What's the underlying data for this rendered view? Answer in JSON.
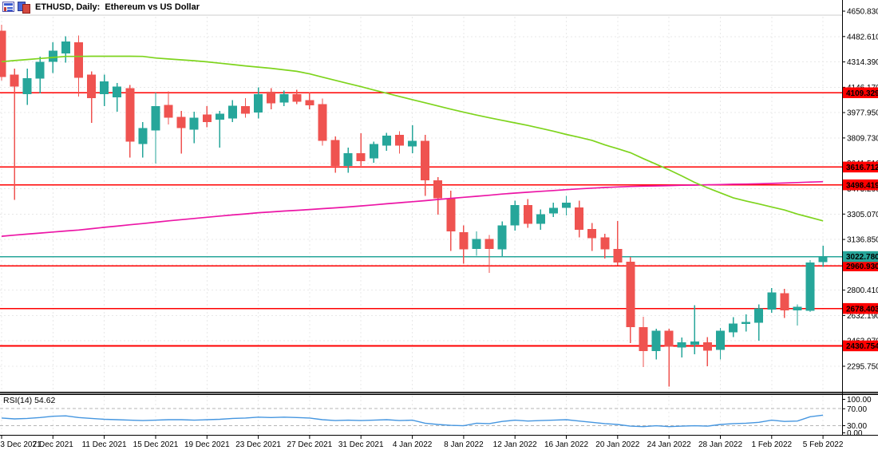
{
  "window": {
    "title": "ETHUSD, Daily:  Ethereum vs US Dollar",
    "icons": [
      "market-watch-icon",
      "chart-window-icon"
    ]
  },
  "colors": {
    "bull": "#26a69a",
    "bear": "#ef5350",
    "level_line": "#ff0000",
    "current_price": "#26a69a",
    "ma_fast": "#7ed41d",
    "ma_slow": "#ec16a6",
    "rsi_line": "#4596e0",
    "grid": "#e8e8e8",
    "rsi_grid": "#b5b5b5",
    "frame": "#000000",
    "top_border": "#cccccc",
    "badge_text": "#ffffff"
  },
  "price_axis": {
    "tick_labels": [
      "4650.830",
      "4482.610",
      "4314.390",
      "4146.170",
      "3977.950",
      "3809.730",
      "3641.510",
      "3473.290",
      "3305.070",
      "3136.850",
      "2968.630",
      "2800.410",
      "2632.190",
      "2463.970",
      "2295.750"
    ]
  },
  "rsi_axis": {
    "tick_labels": [
      "100.00",
      "70.00",
      "30.00",
      "0.00"
    ]
  },
  "time_axis": {
    "tick_labels": [
      "3 Dec 2021",
      "7 Dec 2021",
      "11 Dec 2021",
      "15 Dec 2021",
      "19 Dec 2021",
      "23 Dec 2021",
      "27 Dec 2021",
      "31 Dec 2021",
      "4 Jan 2022",
      "8 Jan 2022",
      "12 Jan 2022",
      "16 Jan 2022",
      "20 Jan 2022",
      "24 Jan 2022",
      "28 Jan 2022",
      "1 Feb 2022",
      "5 Feb 2022"
    ]
  },
  "levels": [
    {
      "label": "4109.329"
    },
    {
      "label": "3616.712"
    },
    {
      "label": "3498.419"
    },
    {
      "label": "2960.930"
    },
    {
      "label": "2678.403"
    },
    {
      "label": "2430.754"
    }
  ],
  "current_price": {
    "label": "3022.780",
    "value": 3022.78
  },
  "rsi_panel": {
    "label": "RSI(14) 54.62",
    "period": 14,
    "value": 54.62
  },
  "chart_data": {
    "type": "candlestick",
    "symbol": "ETHUSD",
    "timeframe": "Daily",
    "description": "Ethereum vs US Dollar",
    "ylim": [
      2295.75,
      4650.83
    ],
    "dates": [
      "3 Dec 2021",
      "4 Dec 2021",
      "5 Dec 2021",
      "6 Dec 2021",
      "7 Dec 2021",
      "8 Dec 2021",
      "9 Dec 2021",
      "10 Dec 2021",
      "11 Dec 2021",
      "12 Dec 2021",
      "13 Dec 2021",
      "14 Dec 2021",
      "15 Dec 2021",
      "16 Dec 2021",
      "17 Dec 2021",
      "18 Dec 2021",
      "19 Dec 2021",
      "20 Dec 2021",
      "21 Dec 2021",
      "22 Dec 2021",
      "23 Dec 2021",
      "24 Dec 2021",
      "25 Dec 2021",
      "26 Dec 2021",
      "27 Dec 2021",
      "28 Dec 2021",
      "29 Dec 2021",
      "30 Dec 2021",
      "31 Dec 2021",
      "1 Jan 2022",
      "2 Jan 2022",
      "3 Jan 2022",
      "4 Jan 2022",
      "5 Jan 2022",
      "6 Jan 2022",
      "7 Jan 2022",
      "8 Jan 2022",
      "9 Jan 2022",
      "10 Jan 2022",
      "11 Jan 2022",
      "12 Jan 2022",
      "13 Jan 2022",
      "14 Jan 2022",
      "15 Jan 2022",
      "16 Jan 2022",
      "17 Jan 2022",
      "18 Jan 2022",
      "19 Jan 2022",
      "20 Jan 2022",
      "21 Jan 2022",
      "22 Jan 2022",
      "23 Jan 2022",
      "24 Jan 2022",
      "25 Jan 2022",
      "26 Jan 2022",
      "27 Jan 2022",
      "28 Jan 2022",
      "29 Jan 2022",
      "30 Jan 2022",
      "31 Jan 2022",
      "1 Feb 2022",
      "2 Feb 2022",
      "3 Feb 2022",
      "4 Feb 2022",
      "5 Feb 2022"
    ],
    "ohlc": [
      [
        4520,
        4560,
        4190,
        4215
      ],
      [
        4230,
        4270,
        3400,
        4150
      ],
      [
        4100,
        4270,
        4030,
        4205
      ],
      [
        4205,
        4350,
        4105,
        4315
      ],
      [
        4315,
        4445,
        4240,
        4390
      ],
      [
        4370,
        4485,
        4310,
        4450
      ],
      [
        4445,
        4490,
        4085,
        4210
      ],
      [
        4230,
        4250,
        3910,
        4075
      ],
      [
        4100,
        4230,
        4020,
        4185
      ],
      [
        4080,
        4175,
        3985,
        4150
      ],
      [
        4140,
        4160,
        3680,
        3785
      ],
      [
        3770,
        3915,
        3680,
        3875
      ],
      [
        3860,
        4110,
        3640,
        4020
      ],
      [
        4030,
        4120,
        3900,
        3945
      ],
      [
        3950,
        3990,
        3705,
        3875
      ],
      [
        3865,
        3985,
        3775,
        3945
      ],
      [
        3965,
        4020,
        3880,
        3915
      ],
      [
        3930,
        3990,
        3745,
        3970
      ],
      [
        3940,
        4060,
        3915,
        4025
      ],
      [
        4020,
        4075,
        3945,
        3970
      ],
      [
        3980,
        4145,
        3940,
        4100
      ],
      [
        4115,
        4140,
        4000,
        4040
      ],
      [
        4045,
        4125,
        4020,
        4100
      ],
      [
        4100,
        4130,
        4035,
        4050
      ],
      [
        4060,
        4110,
        4000,
        4025
      ],
      [
        4035,
        4070,
        3760,
        3790
      ],
      [
        3795,
        3820,
        3580,
        3625
      ],
      [
        3625,
        3745,
        3580,
        3710
      ],
      [
        3710,
        3840,
        3625,
        3655
      ],
      [
        3675,
        3785,
        3645,
        3770
      ],
      [
        3760,
        3845,
        3725,
        3825
      ],
      [
        3830,
        3855,
        3705,
        3760
      ],
      [
        3755,
        3895,
        3710,
        3790
      ],
      [
        3790,
        3830,
        3425,
        3530
      ],
      [
        3530,
        3550,
        3300,
        3410
      ],
      [
        3410,
        3460,
        3060,
        3190
      ],
      [
        3185,
        3230,
        2975,
        3070
      ],
      [
        3075,
        3190,
        3030,
        3140
      ],
      [
        3140,
        3165,
        2915,
        3075
      ],
      [
        3070,
        3255,
        3025,
        3230
      ],
      [
        3230,
        3395,
        3195,
        3365
      ],
      [
        3365,
        3405,
        3215,
        3240
      ],
      [
        3240,
        3335,
        3200,
        3305
      ],
      [
        3310,
        3380,
        3285,
        3345
      ],
      [
        3345,
        3425,
        3295,
        3380
      ],
      [
        3350,
        3395,
        3150,
        3200
      ],
      [
        3205,
        3245,
        3060,
        3145
      ],
      [
        3150,
        3175,
        3010,
        3070
      ],
      [
        3075,
        3260,
        2965,
        2985
      ],
      [
        2990,
        3020,
        2450,
        2555
      ],
      [
        2555,
        2625,
        2290,
        2395
      ],
      [
        2395,
        2545,
        2340,
        2530
      ],
      [
        2530,
        2545,
        2160,
        2425
      ],
      [
        2420,
        2485,
        2355,
        2455
      ],
      [
        2440,
        2700,
        2375,
        2460
      ],
      [
        2455,
        2490,
        2295,
        2400
      ],
      [
        2405,
        2550,
        2340,
        2530
      ],
      [
        2520,
        2620,
        2490,
        2580
      ],
      [
        2575,
        2640,
        2525,
        2590
      ],
      [
        2585,
        2705,
        2465,
        2680
      ],
      [
        2670,
        2815,
        2650,
        2785
      ],
      [
        2780,
        2810,
        2615,
        2665
      ],
      [
        2665,
        2705,
        2565,
        2690
      ],
      [
        2665,
        3000,
        2655,
        2985
      ],
      [
        2985,
        3095,
        2955,
        3022.78
      ]
    ],
    "overlays": [
      {
        "name": "ma-fast-green",
        "values": [
          4316,
          4323,
          4330,
          4337,
          4344,
          4351,
          4351,
          4352,
          4352,
          4352,
          4352,
          4351,
          4340,
          4334,
          4328,
          4322,
          4315,
          4306,
          4297,
          4288,
          4280,
          4272,
          4262,
          4252,
          4235,
          4213,
          4192,
          4171,
          4150,
          4128,
          4107,
          4085,
          4064,
          4043,
          4022,
          4001,
          3981,
          3962,
          3944,
          3927,
          3910,
          3893,
          3874,
          3855,
          3833,
          3814,
          3794,
          3764,
          3739,
          3712,
          3673,
          3636,
          3598,
          3558,
          3515,
          3479,
          3446,
          3413,
          3392,
          3372,
          3352,
          3332,
          3305,
          3283,
          3260
        ]
      },
      {
        "name": "ma-slow-magenta",
        "values": [
          3158,
          3165,
          3172,
          3179,
          3186,
          3193,
          3199,
          3208,
          3217,
          3225,
          3234,
          3242,
          3251,
          3260,
          3268,
          3276,
          3284,
          3292,
          3299,
          3306,
          3314,
          3319,
          3325,
          3330,
          3335,
          3341,
          3346,
          3352,
          3359,
          3366,
          3373,
          3380,
          3387,
          3394,
          3402,
          3409,
          3416,
          3423,
          3430,
          3438,
          3444,
          3450,
          3456,
          3461,
          3467,
          3472,
          3477,
          3481,
          3485,
          3488,
          3490,
          3492,
          3494,
          3496,
          3497,
          3499,
          3501,
          3503,
          3504,
          3506,
          3508,
          3511,
          3514,
          3517,
          3520
        ]
      }
    ],
    "rsi": {
      "period": 14,
      "current": 54.62,
      "levels": [
        70,
        30
      ],
      "values": [
        48,
        46,
        47,
        49,
        52,
        53,
        49,
        47,
        45,
        44,
        43,
        42,
        43,
        44,
        44,
        43,
        44,
        45,
        47,
        48,
        50,
        49,
        50,
        49,
        48,
        44,
        42,
        43,
        42,
        43,
        44,
        42,
        43,
        36,
        33,
        31,
        30,
        36,
        35,
        40,
        43,
        41,
        42,
        43,
        44,
        41,
        38,
        35,
        33,
        29,
        28,
        30,
        28,
        29,
        30,
        29,
        33,
        35,
        36,
        38,
        43,
        40,
        41,
        51,
        54.62
      ]
    },
    "horizontal_lines": [
      4109.329,
      3616.712,
      3498.419,
      2960.93,
      2678.403,
      2430.754
    ],
    "current_price": 3022.78
  }
}
